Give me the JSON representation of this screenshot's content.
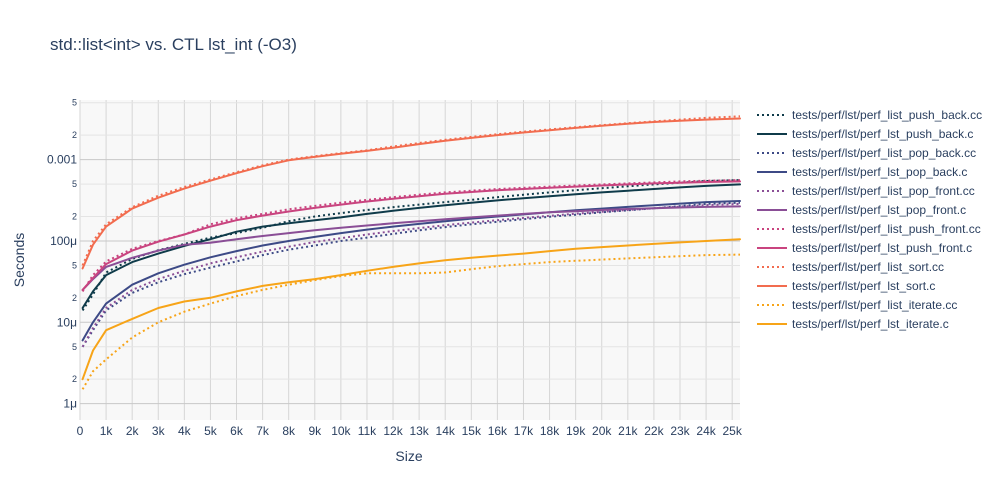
{
  "chart_data": {
    "type": "line",
    "title": "std::list<int> vs. CTL lst_int (-O3)",
    "xlabel": "Size",
    "ylabel": "Seconds",
    "x_scale": "linear",
    "y_scale": "log",
    "xlim": [
      0,
      25300
    ],
    "ylim": [
      6.3e-07,
      0.0054
    ],
    "x_ticks": [
      0,
      1000,
      2000,
      3000,
      4000,
      5000,
      6000,
      7000,
      8000,
      9000,
      10000,
      11000,
      12000,
      13000,
      14000,
      15000,
      16000,
      17000,
      18000,
      19000,
      20000,
      21000,
      22000,
      23000,
      24000,
      25000
    ],
    "x_tick_labels": [
      "0",
      "1k",
      "2k",
      "3k",
      "4k",
      "5k",
      "6k",
      "7k",
      "8k",
      "9k",
      "10k",
      "11k",
      "12k",
      "13k",
      "14k",
      "15k",
      "16k",
      "17k",
      "18k",
      "19k",
      "20k",
      "21k",
      "22k",
      "23k",
      "24k",
      "25k"
    ],
    "y_major_ticks": [
      {
        "value": 1e-06,
        "label": "1μ"
      },
      {
        "value": 1e-05,
        "label": "10μ"
      },
      {
        "value": 0.0001,
        "label": "100μ"
      },
      {
        "value": 0.001,
        "label": "0.001"
      }
    ],
    "y_minor_ticks": [
      {
        "value": 2e-06,
        "label": "2"
      },
      {
        "value": 5e-06,
        "label": "5"
      },
      {
        "value": 2e-05,
        "label": "2"
      },
      {
        "value": 5e-05,
        "label": "5"
      },
      {
        "value": 0.0002,
        "label": "2"
      },
      {
        "value": 0.0005,
        "label": "5"
      },
      {
        "value": 0.002,
        "label": "2"
      },
      {
        "value": 0.005,
        "label": "5"
      }
    ],
    "grid": true,
    "legend_position": "right",
    "x": [
      100,
      500,
      1000,
      2000,
      3000,
      4000,
      5000,
      6000,
      7000,
      8000,
      9000,
      10000,
      11000,
      12000,
      13000,
      14000,
      15000,
      16000,
      17000,
      18000,
      19000,
      20000,
      21000,
      22000,
      23000,
      24000,
      25300
    ],
    "series": [
      {
        "name": "tests/perf/lst/perf_list_push_back.cc",
        "color": "#0f3b4a",
        "dash": "dot",
        "values": [
          1.4e-05,
          2.2e-05,
          4.1e-05,
          6e-05,
          7.7e-05,
          9.2e-05,
          0.00011,
          0.000125,
          0.000145,
          0.000175,
          0.0002,
          0.00022,
          0.00024,
          0.00026,
          0.00028,
          0.0003,
          0.00032,
          0.000345,
          0.00037,
          0.000395,
          0.00042,
          0.000445,
          0.00047,
          0.000495,
          0.00052,
          0.000545,
          0.00056
        ]
      },
      {
        "name": "tests/perf/lst/perf_lst_push_back.c",
        "color": "#0f3b4a",
        "dash": "solid",
        "values": [
          1.5e-05,
          2.4e-05,
          3.8e-05,
          5.5e-05,
          7e-05,
          8.7e-05,
          0.000105,
          0.00013,
          0.00015,
          0.000165,
          0.00018,
          0.000195,
          0.000215,
          0.000235,
          0.000255,
          0.000275,
          0.000295,
          0.000315,
          0.000335,
          0.000355,
          0.000375,
          0.000395,
          0.000415,
          0.000435,
          0.000455,
          0.000475,
          0.000495
        ]
      },
      {
        "name": "tests/perf/lst/perf_list_pop_back.cc",
        "color": "#3d4a86",
        "dash": "dot",
        "values": [
          5e-06,
          8e-06,
          1.4e-05,
          2.3e-05,
          3.1e-05,
          3.9e-05,
          4.7e-05,
          5.6e-05,
          6.7e-05,
          7.8e-05,
          8.8e-05,
          0.0001,
          0.00011,
          0.000122,
          0.000135,
          0.000148,
          0.00016,
          0.000172,
          0.000185,
          0.000198,
          0.00021,
          0.000225,
          0.000238,
          0.000252,
          0.000268,
          0.000285,
          0.000295
        ]
      },
      {
        "name": "tests/perf/lst/perf_lst_pop_back.c",
        "color": "#3d4a86",
        "dash": "solid",
        "values": [
          6e-06,
          1e-05,
          1.7e-05,
          2.9e-05,
          4e-05,
          5.1e-05,
          6.3e-05,
          7.5e-05,
          8.8e-05,
          0.0001,
          0.000112,
          0.000125,
          0.000138,
          0.00015,
          0.000162,
          0.000175,
          0.000188,
          0.0002,
          0.000212,
          0.000225,
          0.000238,
          0.00025,
          0.000262,
          0.000275,
          0.000288,
          0.0003,
          0.00031
        ]
      },
      {
        "name": "tests/perf/lst/perf_list_pop_front.cc",
        "color": "#8a4e96",
        "dash": "dot",
        "values": [
          5e-06,
          8.5e-06,
          1.5e-05,
          2.5e-05,
          3.4e-05,
          4.3e-05,
          5.3e-05,
          6.3e-05,
          7.4e-05,
          8.5e-05,
          9.7e-05,
          0.000108,
          0.00012,
          0.000132,
          0.000144,
          0.000156,
          0.000168,
          0.00018,
          0.000192,
          0.000204,
          0.000216,
          0.000228,
          0.00024,
          0.000252,
          0.000264,
          0.000276,
          0.000285
        ]
      },
      {
        "name": "tests/perf/lst/perf_lst_pop_front.c",
        "color": "#8a4e96",
        "dash": "solid",
        "values": [
          2.5e-05,
          3.4e-05,
          4.8e-05,
          6.2e-05,
          7.6e-05,
          9e-05,
          9.5e-05,
          0.000105,
          0.000115,
          0.000125,
          0.000135,
          0.000145,
          0.000155,
          0.000165,
          0.000175,
          0.000185,
          0.000195,
          0.000205,
          0.000215,
          0.000225,
          0.000232,
          0.00024,
          0.000247,
          0.000253,
          0.000258,
          0.000262,
          0.000266
        ]
      },
      {
        "name": "tests/perf/lst/perf_list_push_front.cc",
        "color": "#c9447f",
        "dash": "dot",
        "values": [
          2.4e-05,
          3.8e-05,
          5.6e-05,
          8e-05,
          0.0001,
          0.00012,
          0.00016,
          0.00019,
          0.000215,
          0.000245,
          0.00027,
          0.000295,
          0.00032,
          0.000345,
          0.00037,
          0.000395,
          0.000415,
          0.000435,
          0.00045,
          0.000465,
          0.00048,
          0.000495,
          0.00051,
          0.000525,
          0.00054,
          0.00055,
          0.00056
        ]
      },
      {
        "name": "tests/perf/lst/perf_lst_push_front.c",
        "color": "#c9447f",
        "dash": "solid",
        "values": [
          2.5e-05,
          3.5e-05,
          5.2e-05,
          7.6e-05,
          9.8e-05,
          0.00012,
          0.00015,
          0.00018,
          0.000205,
          0.00023,
          0.000255,
          0.00028,
          0.000305,
          0.00033,
          0.000355,
          0.00038,
          0.0004,
          0.00042,
          0.000435,
          0.00045,
          0.000465,
          0.00048,
          0.000495,
          0.00051,
          0.00052,
          0.00053,
          0.00054
        ]
      },
      {
        "name": "tests/perf/lst/perf_list_sort.cc",
        "color": "#f26c4f",
        "dash": "dot",
        "values": [
          5e-05,
          0.0001,
          0.00016,
          0.00026,
          0.00036,
          0.00046,
          0.00057,
          0.0007,
          0.00085,
          0.001,
          0.0011,
          0.0012,
          0.0013,
          0.00145,
          0.0016,
          0.00175,
          0.0019,
          0.00205,
          0.0022,
          0.00235,
          0.0025,
          0.00265,
          0.0028,
          0.00295,
          0.0031,
          0.00325,
          0.0034
        ]
      },
      {
        "name": "tests/perf/lst/perf_lst_sort.c",
        "color": "#f26c4f",
        "dash": "solid",
        "values": [
          4.6e-05,
          9e-05,
          0.00015,
          0.00025,
          0.00034,
          0.00044,
          0.00055,
          0.00068,
          0.00083,
          0.00098,
          0.00108,
          0.00118,
          0.00128,
          0.0014,
          0.00155,
          0.0017,
          0.00185,
          0.002,
          0.00215,
          0.0023,
          0.00245,
          0.0026,
          0.00275,
          0.0029,
          0.003,
          0.0031,
          0.0032
        ]
      },
      {
        "name": "tests/perf/lst/perf_list_iterate.cc",
        "color": "#f7a418",
        "dash": "dot",
        "values": [
          1.5e-06,
          2.5e-06,
          3.5e-06,
          6.5e-06,
          1e-05,
          1.35e-05,
          1.7e-05,
          2.1e-05,
          2.5e-05,
          2.9e-05,
          3.3e-05,
          3.7e-05,
          4e-05,
          4e-05,
          4e-05,
          4.1e-05,
          4.5e-05,
          4.9e-05,
          5.2e-05,
          5.5e-05,
          5.7e-05,
          5.9e-05,
          6.1e-05,
          6.3e-05,
          6.5e-05,
          6.7e-05,
          6.8e-05
        ]
      },
      {
        "name": "tests/perf/lst/perf_lst_iterate.c",
        "color": "#f7a418",
        "dash": "solid",
        "values": [
          2e-06,
          4.5e-06,
          8e-06,
          1.1e-05,
          1.5e-05,
          1.8e-05,
          2e-05,
          2.4e-05,
          2.8e-05,
          3.1e-05,
          3.4e-05,
          3.8e-05,
          4.3e-05,
          4.8e-05,
          5.3e-05,
          5.8e-05,
          6.2e-05,
          6.6e-05,
          7e-05,
          7.5e-05,
          8e-05,
          8.4e-05,
          8.8e-05,
          9.2e-05,
          9.6e-05,
          0.0001,
          0.000105
        ]
      }
    ]
  }
}
